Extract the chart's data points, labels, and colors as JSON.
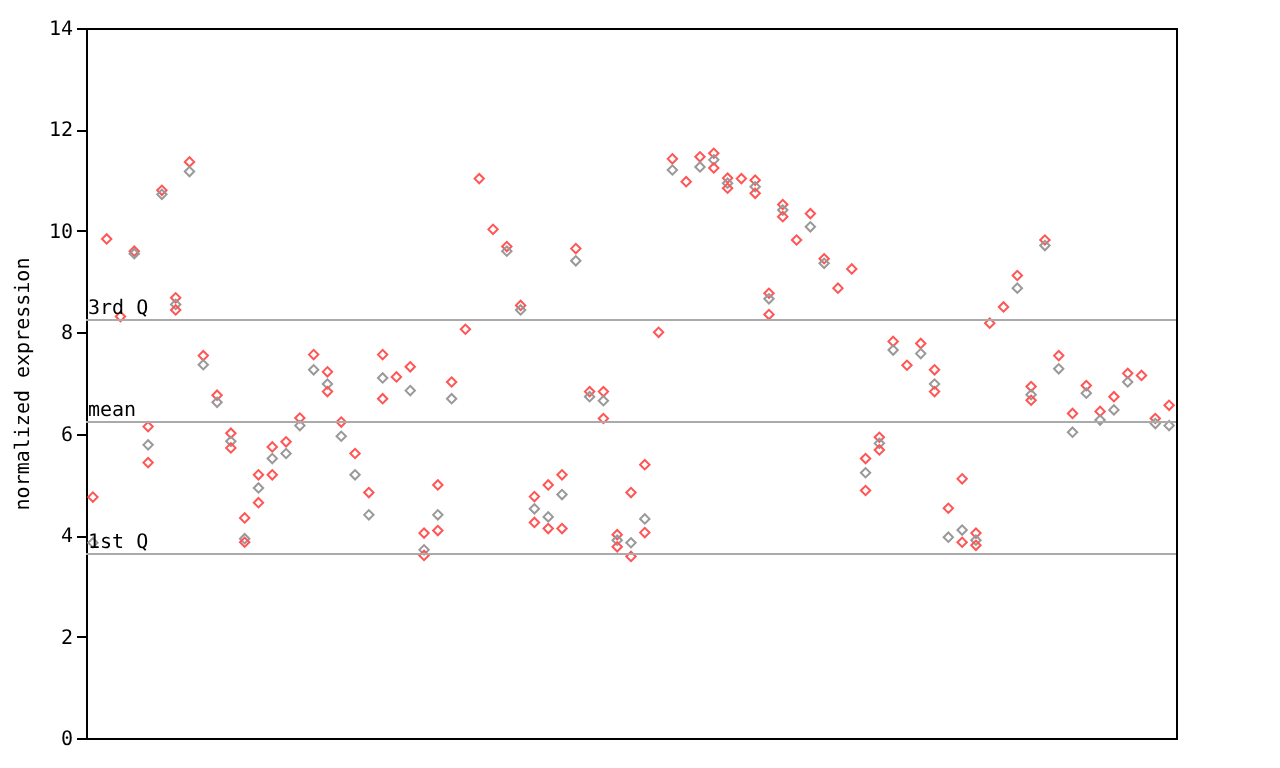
{
  "chart_data": {
    "type": "scatter",
    "ylabel": "normalized expression",
    "categories": [
      null,
      null,
      null,
      null,
      null,
      null,
      null,
      null,
      null,
      null,
      null,
      null,
      null,
      null,
      null,
      null,
      null,
      null,
      null,
      null,
      null,
      null,
      null,
      null,
      null,
      null,
      null,
      null,
      null,
      null,
      null,
      null,
      null,
      null,
      null,
      null,
      null,
      null,
      null,
      null,
      null,
      null,
      null,
      null,
      null,
      null,
      null,
      null,
      null,
      null,
      null,
      null,
      null,
      null,
      null,
      null,
      null,
      null,
      null,
      null,
      null,
      null,
      null,
      null,
      null,
      null,
      null,
      null,
      null,
      null,
      null,
      null,
      null,
      null,
      null,
      null,
      null,
      null,
      null
    ],
    "series": [
      {
        "color": "#ff5555",
        "values": [
          4.75,
          9.84,
          8.31,
          9.6,
          6.14,
          10.8,
          8.68,
          11.36,
          7.54,
          6.76,
          6.01,
          4.34,
          5.19,
          5.74,
          5.84,
          6.31,
          7.56,
          7.22,
          6.23,
          5.61,
          4.84,
          7.56,
          7.12,
          7.32,
          4.04,
          4.99,
          7.02,
          8.06,
          11.03,
          10.03,
          9.69,
          8.53,
          4.76,
          4.99,
          5.19,
          9.65,
          6.83,
          6.83,
          4.01,
          4.84,
          5.39,
          8.0,
          11.42,
          10.97,
          11.46,
          11.53,
          11.04,
          11.03,
          11.0,
          8.77,
          10.52,
          9.82,
          10.34,
          9.45,
          8.87,
          9.25,
          5.51,
          5.93,
          7.82,
          7.35,
          7.78,
          7.26,
          4.53,
          5.11,
          4.04,
          8.18,
          8.5,
          9.12,
          6.93,
          9.82,
          7.54,
          6.4,
          6.95,
          6.44,
          6.73,
          7.19,
          7.15,
          6.3,
          6.56
        ]
      },
      {
        "color": "#999999",
        "values": [
          3.85,
          null,
          null,
          9.55,
          5.78,
          10.72,
          8.55,
          11.17,
          7.36,
          6.62,
          5.85,
          3.93,
          4.93,
          5.51,
          5.61,
          6.16,
          7.26,
          6.98,
          5.95,
          5.19,
          4.4,
          7.1,
          null,
          6.85,
          3.71,
          4.4,
          6.69,
          null,
          null,
          null,
          9.6,
          8.44,
          4.52,
          4.36,
          4.8,
          9.41,
          6.73,
          6.65,
          3.9,
          3.85,
          4.32,
          null,
          11.2,
          null,
          11.26,
          11.4,
          10.94,
          null,
          10.87,
          8.66,
          10.41,
          null,
          10.08,
          9.36,
          null,
          null,
          5.23,
          5.81,
          7.65,
          null,
          7.58,
          6.98,
          3.96,
          4.1,
          3.9,
          null,
          null,
          8.87,
          6.77,
          9.71,
          7.28,
          6.03,
          6.8,
          6.27,
          6.47,
          7.02,
          null,
          6.2,
          6.16
        ]
      },
      {
        "color": "#ff5555",
        "values": [
          null,
          null,
          null,
          null,
          5.43,
          null,
          8.44,
          null,
          null,
          null,
          5.72,
          3.86,
          4.64,
          5.19,
          null,
          null,
          null,
          6.83,
          null,
          null,
          null,
          6.69,
          null,
          null,
          3.6,
          4.09,
          null,
          null,
          null,
          null,
          null,
          null,
          4.25,
          4.13,
          4.13,
          null,
          null,
          6.3,
          3.77,
          3.58,
          4.05,
          null,
          null,
          null,
          null,
          11.24,
          10.84,
          null,
          10.74,
          8.35,
          10.28,
          null,
          null,
          null,
          null,
          null,
          4.88,
          5.68,
          null,
          null,
          null,
          6.83,
          null,
          3.86,
          3.8,
          null,
          null,
          null,
          6.66,
          null,
          null,
          null,
          null,
          null,
          null,
          null,
          null,
          null,
          null
        ]
      }
    ],
    "ylim": [
      0,
      14
    ],
    "yticks": [
      0,
      2,
      4,
      6,
      8,
      10,
      12,
      14
    ],
    "marker": "diamond",
    "tick_labels": "y",
    "ref_lines": [
      {
        "axis": "y",
        "value": 8.24,
        "label": "3rd Q",
        "color": "#aaaaaa"
      },
      {
        "axis": "y",
        "value": 6.23,
        "label": "mean",
        "color": "#aaaaaa"
      },
      {
        "axis": "y",
        "value": 3.63,
        "label": "1st Q",
        "color": "#aaaaaa"
      }
    ]
  }
}
